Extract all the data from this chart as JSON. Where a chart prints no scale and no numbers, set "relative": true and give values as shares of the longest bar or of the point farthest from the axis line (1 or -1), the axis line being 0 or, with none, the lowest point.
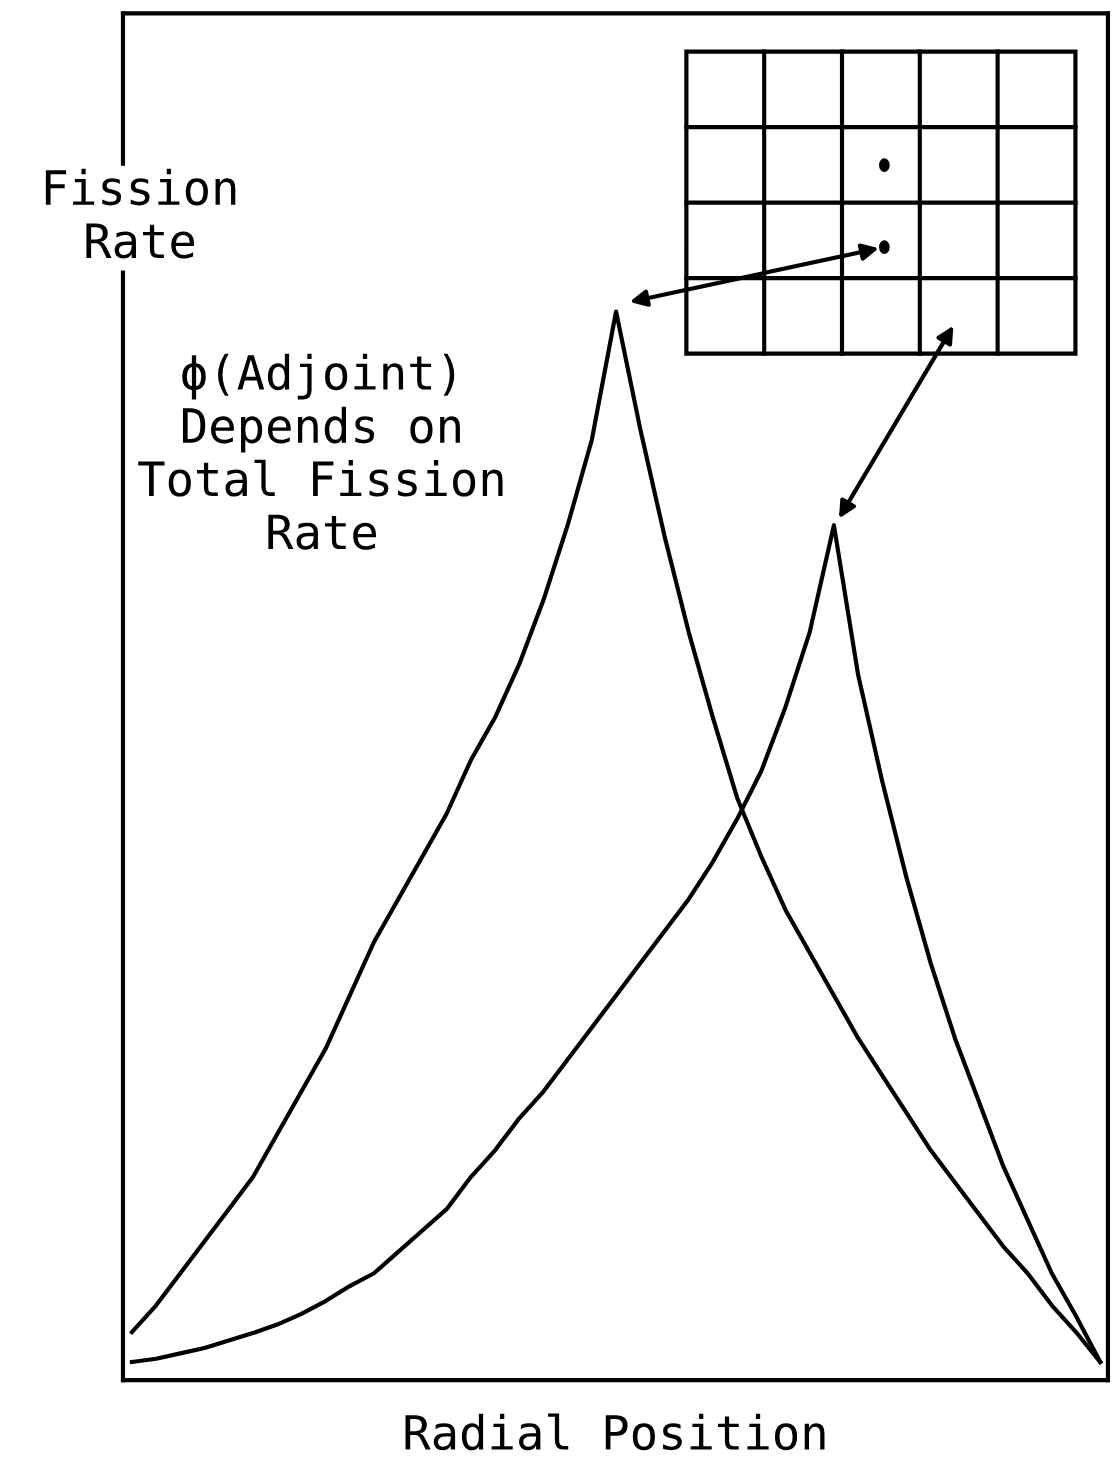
{
  "chart_data": {
    "type": "line",
    "relative": true,
    "ylabel": "Fission\nRate",
    "xlabel": "Radial Position",
    "annotations": [
      "ϕ(Adjoint)\nDepends on\nTotal Fission\nRate"
    ],
    "categories": [
      null,
      null,
      null,
      null,
      null,
      null,
      null,
      null,
      null,
      null,
      null,
      null,
      null,
      null,
      null,
      null,
      null,
      null,
      null,
      null,
      null,
      null,
      null,
      null,
      null,
      null,
      null,
      null,
      null,
      null,
      null,
      null,
      null,
      null,
      null,
      null,
      null,
      null,
      null,
      null,
      null
    ],
    "series": [
      {
        "color": "#000000",
        "values": [
          0.045,
          0.07,
          0.1,
          0.13,
          0.16,
          0.19,
          0.23,
          0.27,
          0.31,
          0.36,
          0.41,
          0.45,
          0.49,
          0.53,
          0.58,
          0.62,
          0.67,
          0.73,
          0.8,
          0.88,
          1.0,
          0.89,
          0.79,
          0.7,
          0.62,
          0.545,
          0.49,
          0.44,
          0.4,
          0.36,
          0.32,
          0.285,
          0.25,
          0.215,
          0.185,
          0.155,
          0.125,
          0.1,
          0.07,
          0.045,
          0.017
        ]
      },
      {
        "color": "#000000",
        "values": [
          0.017,
          0.02,
          0.025,
          0.03,
          0.037,
          0.044,
          0.052,
          0.062,
          0.074,
          0.088,
          0.1,
          0.12,
          0.14,
          0.16,
          0.19,
          0.215,
          0.245,
          0.27,
          0.3,
          0.33,
          0.36,
          0.39,
          0.42,
          0.45,
          0.485,
          0.525,
          0.57,
          0.63,
          0.7,
          0.8,
          0.66,
          0.56,
          0.47,
          0.39,
          0.32,
          0.26,
          0.2,
          0.15,
          0.1,
          0.06,
          0.017
        ]
      }
    ],
    "legend": false,
    "marker": "none",
    "line_style": "solid"
  }
}
